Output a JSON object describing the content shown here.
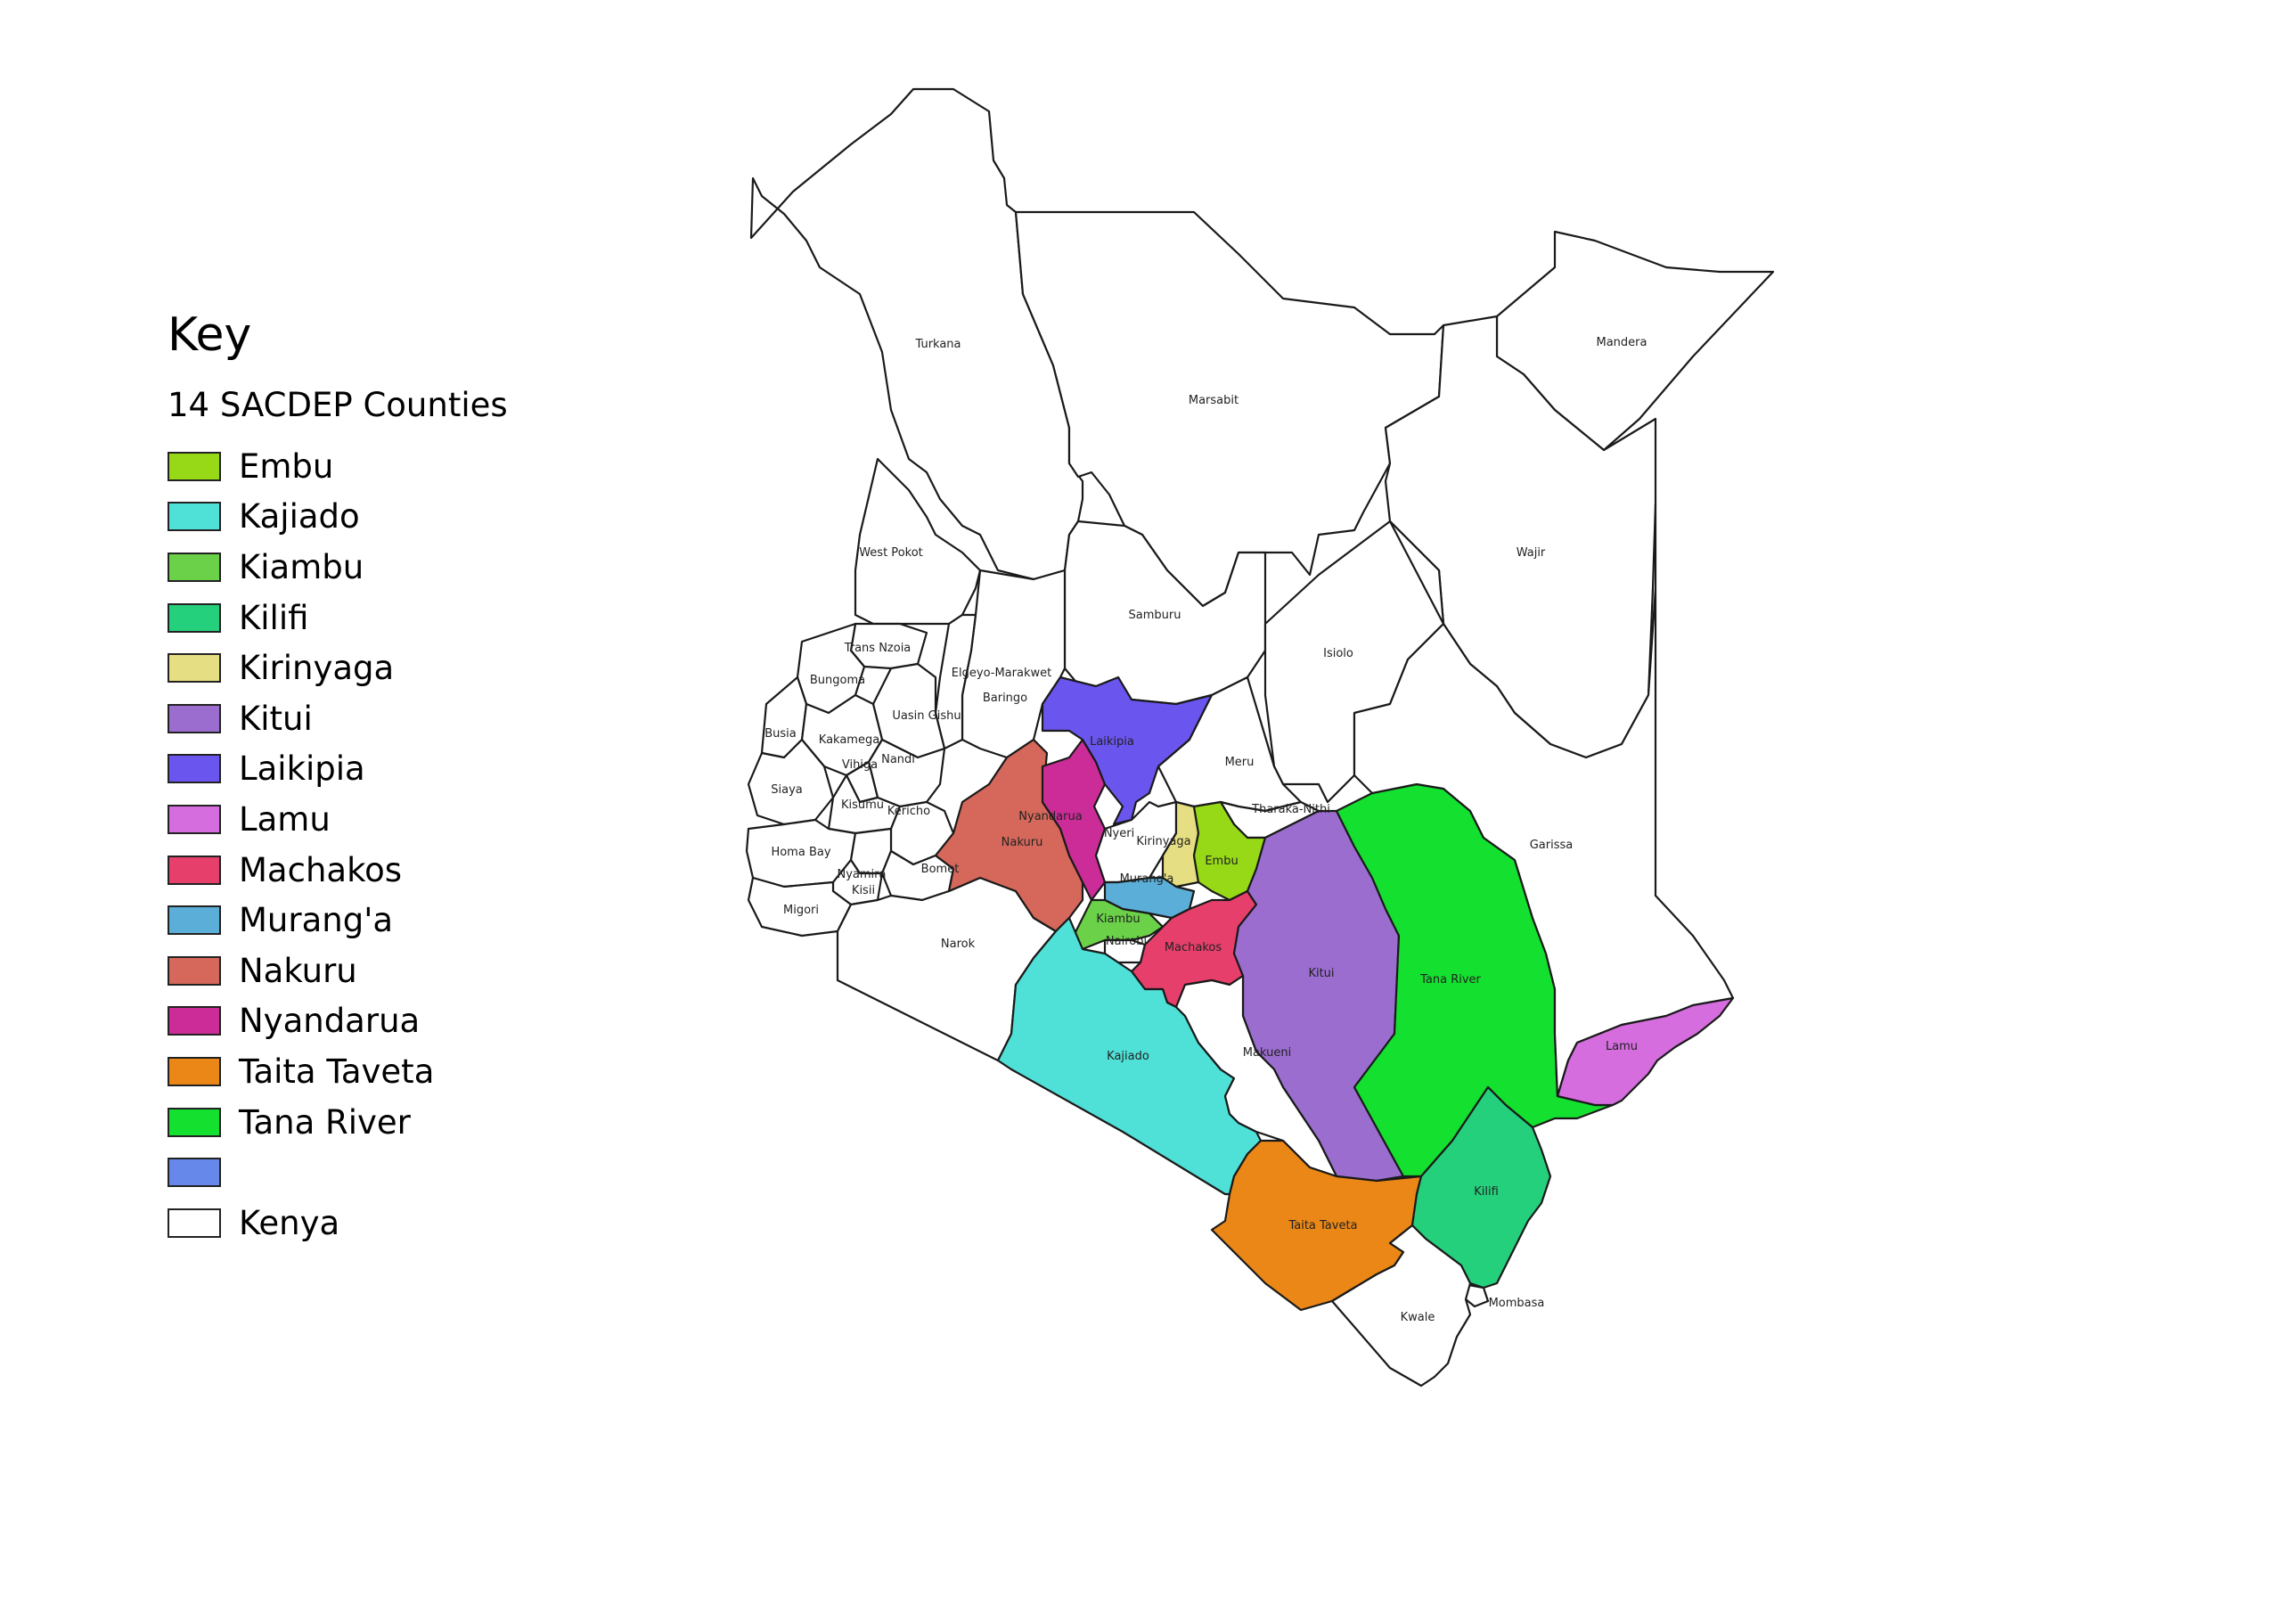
{
  "legend": {
    "title": "Key",
    "group_title": "14 SACDEP Counties",
    "items": [
      {
        "label": "Embu",
        "color": "#97d917"
      },
      {
        "label": "Kajiado",
        "color": "#4fe0d7"
      },
      {
        "label": "Kiambu",
        "color": "#6ad148"
      },
      {
        "label": "Kilifi",
        "color": "#25d07c"
      },
      {
        "label": "Kirinyaga",
        "color": "#e6de82"
      },
      {
        "label": "Kitui",
        "color": "#9a6dcf"
      },
      {
        "label": "Laikipia",
        "color": "#6a55ee"
      },
      {
        "label": "Lamu",
        "color": "#d56ddf"
      },
      {
        "label": "Machakos",
        "color": "#e63f6b"
      },
      {
        "label": "Murang'a",
        "color": "#5aaed7"
      },
      {
        "label": "Nakuru",
        "color": "#d5685a"
      },
      {
        "label": "Nyandarua",
        "color": "#cc2c98"
      },
      {
        "label": "Taita Taveta",
        "color": "#ea8717"
      },
      {
        "label": "Tana River",
        "color": "#14e02f"
      },
      {
        "label": "",
        "color": "#6688ea"
      },
      {
        "label": "Kenya",
        "color": "#ffffff"
      }
    ]
  },
  "map": {
    "labels": {
      "turkana": "Turkana",
      "marsabit": "Marsabit",
      "mandera": "Mandera",
      "wajir": "Wajir",
      "west_pokot": "West Pokot",
      "samburu": "Samburu",
      "isiolo": "Isiolo",
      "trans_nzoia": "Trans Nzoia",
      "bungoma": "Bungoma",
      "elgeyo_marakwet": "Elgeyo-Marakwet",
      "baringo": "Baringo",
      "uasin_gishu": "Uasin Gishu",
      "busia": "Busia",
      "kakamega": "Kakamega",
      "nandi": "Nandi",
      "vihiga": "Vihiga",
      "siaya": "Siaya",
      "kisumu": "Kisumu",
      "kericho": "Kericho",
      "homa_bay": "Homa Bay",
      "nyamira": "Nyamira",
      "kisii": "Kisii",
      "bomet": "Bomet",
      "migori": "Migori",
      "narok": "Narok",
      "laikipia": "Laikipia",
      "meru": "Meru",
      "tharaka_nithi": "Tharaka-Nithi",
      "nyandarua": "Nyandarua",
      "nakuru": "Nakuru",
      "nyeri": "Nyeri",
      "kirinyaga": "Kirinyaga",
      "embu": "Embu",
      "muranga": "Murang'a",
      "kiambu": "Kiambu",
      "nairobi": "Nairobi",
      "machakos": "Machakos",
      "kitui": "Kitui",
      "garissa": "Garissa",
      "tana_river": "Tana River",
      "lamu": "Lamu",
      "kajiado": "Kajiado",
      "makueni": "Makueni",
      "kilifi": "Kilifi",
      "taita_taveta": "Taita Taveta",
      "mombasa": "Mombasa",
      "kwale": "Kwale"
    }
  }
}
